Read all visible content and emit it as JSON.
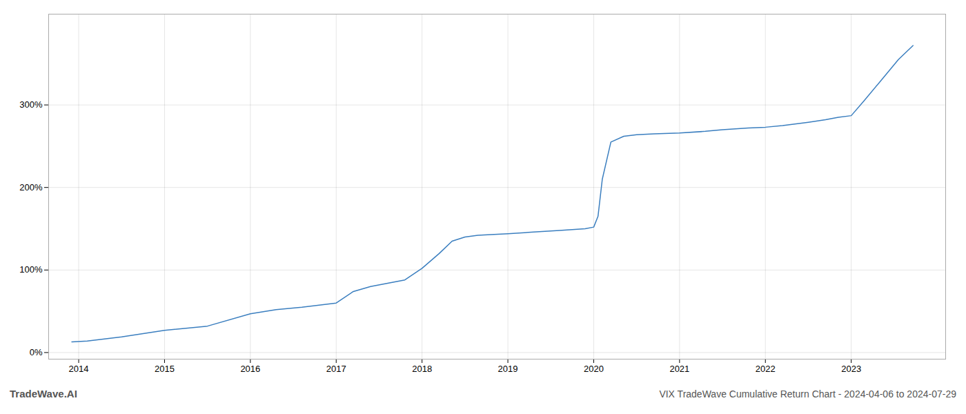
{
  "chart_data": {
    "type": "line",
    "title": "VIX TradeWave Cumulative Return Chart - 2024-04-06 to 2024-07-29",
    "annotations": [
      "TradeWave.AI"
    ],
    "color": "#3a7ebf",
    "grid": true,
    "x": [
      2013.92,
      2014.1,
      2014.5,
      2015.0,
      2015.5,
      2016.0,
      2016.3,
      2016.6,
      2017.0,
      2017.2,
      2017.4,
      2017.6,
      2017.8,
      2018.0,
      2018.2,
      2018.35,
      2018.5,
      2018.65,
      2018.8,
      2019.0,
      2019.3,
      2019.6,
      2019.9,
      2020.0,
      2020.05,
      2020.1,
      2020.2,
      2020.35,
      2020.5,
      2020.7,
      2021.0,
      2021.3,
      2021.5,
      2021.8,
      2022.0,
      2022.2,
      2022.5,
      2022.7,
      2022.85,
      2023.0,
      2023.15,
      2023.35,
      2023.55,
      2023.72
    ],
    "values": [
      0.13,
      0.14,
      0.19,
      0.27,
      0.32,
      0.47,
      0.52,
      0.55,
      0.6,
      0.74,
      0.8,
      0.84,
      0.88,
      1.02,
      1.2,
      1.35,
      1.4,
      1.42,
      1.43,
      1.44,
      1.46,
      1.48,
      1.5,
      1.52,
      1.65,
      2.1,
      2.55,
      2.62,
      2.64,
      2.65,
      2.66,
      2.68,
      2.7,
      2.72,
      2.73,
      2.75,
      2.79,
      2.82,
      2.85,
      2.87,
      3.05,
      3.3,
      3.55,
      3.72
    ],
    "xlim": [
      2013.65,
      2024.1
    ],
    "xticks": [
      2014,
      2015,
      2016,
      2017,
      2018,
      2019,
      2020,
      2021,
      2022,
      2023
    ],
    "ylim": [
      -0.08,
      4.1
    ],
    "yticks": [
      {
        "value": 0,
        "label": "0%"
      },
      {
        "value": 1,
        "label": "100%"
      },
      {
        "value": 2,
        "label": "200%"
      },
      {
        "value": 3,
        "label": "300%"
      }
    ]
  }
}
